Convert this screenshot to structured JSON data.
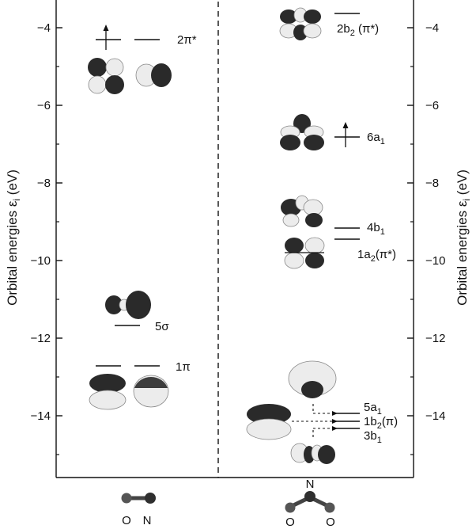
{
  "axis": {
    "left_label": "Orbital energies ε",
    "right_label": "Orbital energies ε",
    "label_subscript": "i",
    "label_unit": " (eV)",
    "ticks": [
      {
        "value": -4,
        "label": "−4"
      },
      {
        "value": -6,
        "label": "−6"
      },
      {
        "value": -8,
        "label": "−8"
      },
      {
        "value": -10,
        "label": "−10"
      },
      {
        "value": -12,
        "label": "−12"
      },
      {
        "value": -14,
        "label": "−14"
      }
    ],
    "range": [
      -15.6,
      -3.45
    ]
  },
  "colors": {
    "lobe_dark": "#2a2a2a",
    "lobe_light": "#ececec",
    "line": "#111111",
    "atom": "#3c3c3c"
  },
  "left_panel": {
    "molecule": "NO",
    "atom_labels": [
      "O",
      "N"
    ],
    "levels": [
      {
        "label": "2π*",
        "energy": -4.35,
        "degenerate": 2,
        "electrons": 1,
        "orbital_icon": "pi-star-orbital-icon"
      },
      {
        "label": "5σ",
        "energy": -11.75,
        "degenerate": 1,
        "electrons": 0,
        "orbital_icon": "sigma-orbital-icon"
      },
      {
        "label": "1π",
        "energy": -12.75,
        "degenerate": 2,
        "electrons": 0,
        "orbital_icon": "pi-orbital-icon"
      }
    ]
  },
  "right_panel": {
    "molecule": "NO2",
    "atom_labels": [
      "N",
      "O",
      "O"
    ],
    "levels": [
      {
        "label_main": "2b",
        "label_sub": "2",
        "label_tail": " (π*)",
        "energy": -3.7,
        "electrons": 0
      },
      {
        "label_main": "6a",
        "label_sub": "1",
        "label_tail": "",
        "energy": -6.85,
        "electrons": 1
      },
      {
        "label_main": "4b",
        "label_sub": "1",
        "label_tail": "",
        "energy": -9.2,
        "electrons": 0
      },
      {
        "label_main": "1a",
        "label_sub": "2",
        "label_tail": "(π*)",
        "energy": -9.5,
        "electrons": 0
      },
      {
        "label_main": "5a",
        "label_sub": "1",
        "label_tail": "",
        "energy": -14.0,
        "electrons": 0
      },
      {
        "label_main": "1b",
        "label_sub": "2",
        "label_tail": "(π)",
        "energy": -14.2,
        "electrons": 0
      },
      {
        "label_main": "3b",
        "label_sub": "1",
        "label_tail": "",
        "energy": -14.4,
        "electrons": 0
      }
    ]
  }
}
